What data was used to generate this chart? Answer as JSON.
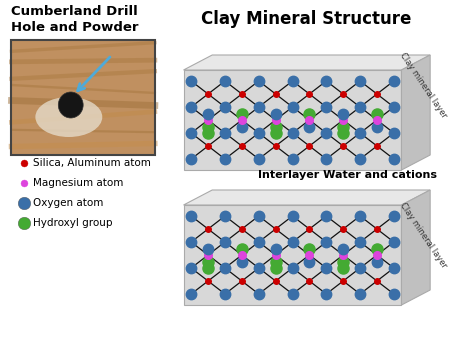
{
  "title": "Clay Mineral Structure",
  "left_title": "Cumberland Drill\nHole and Powder",
  "interlayer_label": "Interlayer Water and cations",
  "clay_layer_label": "Clay mineral layer",
  "legend_items": [
    {
      "label": "Silica, Aluminum atom",
      "color": "#cc0000",
      "size": 5
    },
    {
      "label": "Magnesium atom",
      "color": "#dd44dd",
      "size": 5
    },
    {
      "label": "Oxygen atom",
      "color": "#3a6fa8",
      "size": 9
    },
    {
      "label": "Hydroxyl group",
      "color": "#44aa33",
      "size": 9
    }
  ],
  "bg_color": "#ffffff",
  "box_face_color": "#d8d8d8",
  "box_top_color": "#e8e8e8",
  "box_right_color": "#c0c0c0",
  "silica_color": "#cc0000",
  "mg_color": "#dd44dd",
  "oxygen_color": "#3a6fa8",
  "hydroxyl_color": "#44aa33",
  "bond_color": "#111111"
}
